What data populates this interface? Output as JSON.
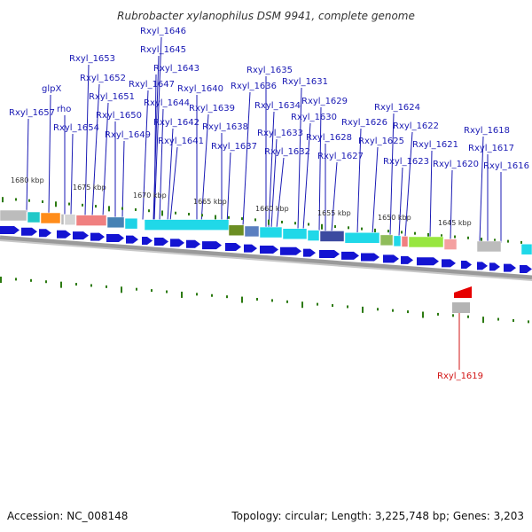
{
  "title": "Rubrobacter xylanophilus DSM 9941, complete genome",
  "footer": {
    "accession": "Accession: NC_008148",
    "summary": "Topology: circular; Length: 3,225,748 bp; Genes: 3,203"
  },
  "colors": {
    "forward_gene": "#1414d2",
    "reverse_gene": "#e60000",
    "label_line_blue": "#1a1ab4",
    "label_line_red": "#d21414",
    "tick": "#2c7a10",
    "backbone": "#999999"
  },
  "kbp_markers": [
    "1680 kbp",
    "1675 kbp",
    "1670 kbp",
    "1665 kbp",
    "1660 kbp",
    "1655 kbp",
    "1650 kbp",
    "1645 kbp"
  ],
  "gene_labels": [
    "Rxyl_1646",
    "Rxyl_1645",
    "Rxyl_1653",
    "Rxyl_1643",
    "Rxyl_1635",
    "Rxyl_1652",
    "Rxyl_1647",
    "Rxyl_1631",
    "glpX",
    "Rxyl_1640",
    "Rxyl_1636",
    "Rxyl_1651",
    "Rxyl_1644",
    "Rxyl_1629",
    "rho",
    "Rxyl_1639",
    "Rxyl_1634",
    "Rxyl_1624",
    "Rxyl_1657",
    "Rxyl_1650",
    "Rxyl_1630",
    "Rxyl_1642",
    "Rxyl_1626",
    "Rxyl_1654",
    "Rxyl_1638",
    "Rxyl_1622",
    "Rxyl_1633",
    "Rxyl_1618",
    "Rxyl_1649",
    "Rxyl_1628",
    "Rxyl_1641",
    "Rxyl_1625",
    "Rxyl_1637",
    "Rxyl_1621",
    "Rxyl_1617",
    "Rxyl_1632",
    "Rxyl_1627",
    "Rxyl_1623",
    "Rxyl_1620",
    "Rxyl_1616",
    "Rxyl_1619"
  ]
}
